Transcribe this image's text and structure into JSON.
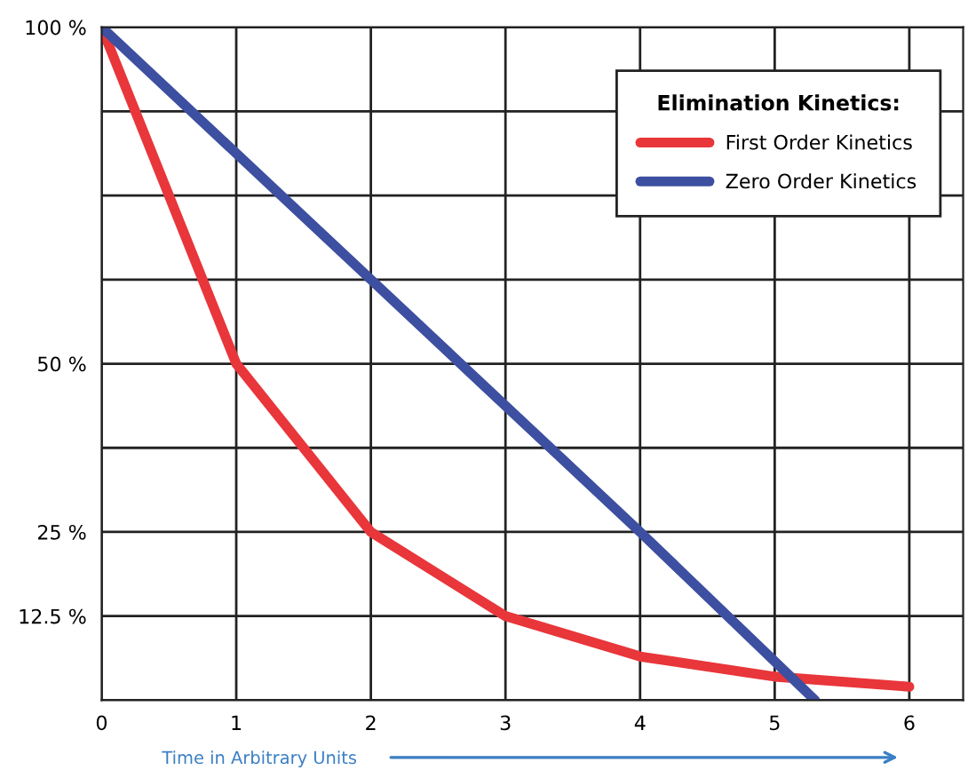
{
  "chart_data": {
    "type": "line",
    "xlabel": "Time in Arbitrary Units",
    "legend_title": "Elimination Kinetics:",
    "series": [
      {
        "name": "First Order Kinetics",
        "color": "#e8363a",
        "x": [
          0,
          1,
          2,
          3,
          4,
          5,
          6
        ],
        "values": [
          100,
          50,
          25,
          12.5,
          6.5,
          3.5,
          2
        ]
      },
      {
        "name": "Zero Order Kinetics",
        "color": "#3d4fa0",
        "x": [
          0,
          2,
          4,
          5.3
        ],
        "values": [
          100,
          62.5,
          25,
          0
        ]
      }
    ],
    "xlim": [
      0,
      6.4
    ],
    "xticks": [
      0,
      1,
      2,
      3,
      4,
      5,
      6
    ],
    "ylim": [
      0,
      100
    ],
    "yticks": [
      {
        "value": 0,
        "label": null
      },
      {
        "value": 12.5,
        "label": "12.5 %"
      },
      {
        "value": 25,
        "label": "25 %"
      },
      {
        "value": 37.5,
        "label": null
      },
      {
        "value": 50,
        "label": "50 %"
      },
      {
        "value": 62.5,
        "label": null
      },
      {
        "value": 75,
        "label": null
      },
      {
        "value": 87.5,
        "label": null
      },
      {
        "value": 100,
        "label": "100 %"
      }
    ],
    "grid": true,
    "legend": "top right",
    "marker": "none",
    "line_style": "solid"
  }
}
